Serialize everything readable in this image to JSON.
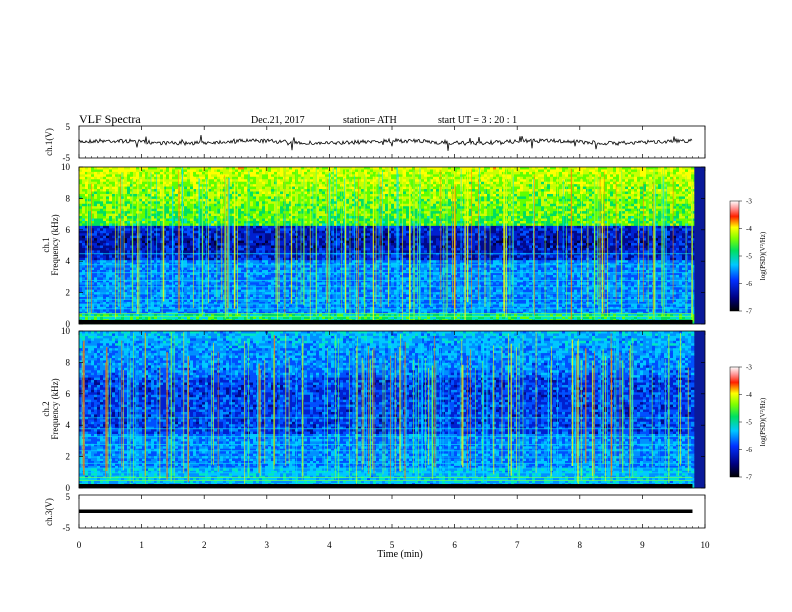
{
  "header": {
    "title": "VLF  Spectra",
    "date": "Dec.21, 2017",
    "station": "station= ATH",
    "start": "start  UT  =    3  : 20 : 1"
  },
  "chart_data": {
    "type": "heatmap",
    "x": {
      "label": "Time  (min)",
      "range": [
        0,
        10
      ],
      "ticks": [
        "0",
        "1",
        "2",
        "3",
        "4",
        "5",
        "6",
        "7",
        "8",
        "9",
        "10"
      ]
    },
    "panels": [
      {
        "id": "ch1_wave",
        "type": "line",
        "ylabel": "ch.1(V)",
        "ylim": [
          -5,
          5
        ],
        "ytick_labels": [
          "5",
          "-5"
        ]
      },
      {
        "id": "ch1_spec",
        "type": "heatmap",
        "ylabel": "ch.1\nFrequency  (kHz)",
        "ylabel_top": "ch.1",
        "ylabel_main": "Frequency  (kHz)",
        "ylim": [
          0,
          10
        ],
        "ytick_labels": [
          "0",
          "2",
          "4",
          "6",
          "8",
          "10"
        ],
        "colorbar": {
          "label": "log(PSD)(V²/Hz)",
          "ticks": [
            "-3",
            "-4",
            "-5",
            "-6",
            "-7"
          ]
        }
      },
      {
        "id": "ch2_spec",
        "type": "heatmap",
        "ylabel_top": "ch.2",
        "ylabel_main": "Frequency  (kHz)",
        "ylim": [
          0,
          10
        ],
        "ytick_labels": [
          "0",
          "2",
          "4",
          "6",
          "8",
          "10"
        ],
        "colorbar": {
          "label": "log(PSD)(V²/Hz)",
          "ticks": [
            "-3",
            "-4",
            "-5",
            "-6",
            "-7"
          ]
        }
      },
      {
        "id": "ch3_wave",
        "type": "line",
        "ylabel": "ch.3(V)",
        "ylim": [
          -5,
          5
        ],
        "ytick_labels": [
          "5",
          "-5"
        ]
      }
    ],
    "data_extent_min": 9.8
  }
}
